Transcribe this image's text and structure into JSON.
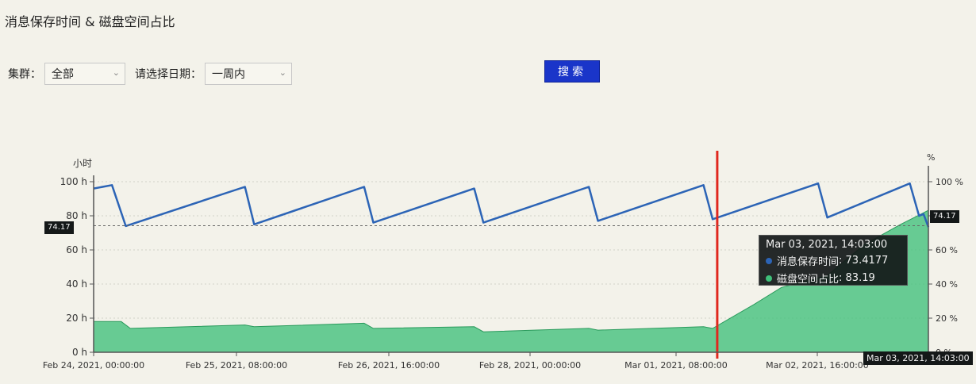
{
  "page": {
    "title": "消息保存时间 & 磁盘空间占比"
  },
  "filters": {
    "cluster_label": "集群：",
    "cluster_value": "全部",
    "date_label": "请选择日期：",
    "date_value": "一周内",
    "search_label": "搜索"
  },
  "colors": {
    "retention": "#2c64b6",
    "disk_fill": "#3fc07a",
    "disk_line": "#2a9a5c",
    "crosshair": "#e0281e",
    "search_button": "#1a35c9"
  },
  "chart_data": {
    "type": "line",
    "x_axis": {
      "ticks": [
        "Feb 24, 2021, 00:00:00",
        "Feb 25, 2021, 08:00:00",
        "Feb 26, 2021, 16:00:00",
        "Feb 28, 2021, 00:00:00",
        "Mar 01, 2021, 08:00:00",
        "Mar 02, 2021, 16:00:00"
      ],
      "end_label": "Mar 03, 2021, 14:03:00"
    },
    "y_left": {
      "unit": "小时",
      "range": [
        0,
        100
      ],
      "ticks": [
        "0 h",
        "20 h",
        "40 h",
        "60 h",
        "80 h",
        "100 h"
      ],
      "cursor_value": "74.17"
    },
    "y_right": {
      "unit": "%",
      "range": [
        0,
        100
      ],
      "ticks": [
        "0 %",
        "20 %",
        "40 %",
        "60 %",
        "80 %",
        "100 %"
      ],
      "cursor_value": "74.17"
    },
    "series": [
      {
        "name": "消息保存时间",
        "axis": "left",
        "points": [
          [
            "2021-02-24 00:00",
            96
          ],
          [
            "2021-02-24 04:00",
            98
          ],
          [
            "2021-02-24 07:00",
            74
          ],
          [
            "2021-02-25 09:00",
            97
          ],
          [
            "2021-02-25 11:00",
            75
          ],
          [
            "2021-02-26 11:00",
            97
          ],
          [
            "2021-02-26 13:00",
            76
          ],
          [
            "2021-02-27 11:00",
            96
          ],
          [
            "2021-02-27 13:00",
            76
          ],
          [
            "2021-02-28 12:00",
            97
          ],
          [
            "2021-02-28 14:00",
            77
          ],
          [
            "2021-03-01 13:00",
            98
          ],
          [
            "2021-03-01 15:00",
            78
          ],
          [
            "2021-03-02 14:00",
            99
          ],
          [
            "2021-03-02 16:00",
            79
          ],
          [
            "2021-03-03 10:00",
            99
          ],
          [
            "2021-03-03 12:00",
            80
          ],
          [
            "2021-03-03 13:00",
            81
          ],
          [
            "2021-03-03 14:03",
            73.4177
          ]
        ]
      },
      {
        "name": "磁盘空间占比",
        "axis": "right",
        "points": [
          [
            "2021-02-24 00:00",
            18
          ],
          [
            "2021-02-24 06:00",
            18
          ],
          [
            "2021-02-24 08:00",
            14
          ],
          [
            "2021-02-25 09:00",
            16
          ],
          [
            "2021-02-25 11:00",
            15
          ],
          [
            "2021-02-26 11:00",
            17
          ],
          [
            "2021-02-26 13:00",
            14
          ],
          [
            "2021-02-27 11:00",
            15
          ],
          [
            "2021-02-27 13:00",
            12
          ],
          [
            "2021-02-28 12:00",
            14
          ],
          [
            "2021-02-28 14:00",
            13
          ],
          [
            "2021-03-01 13:00",
            15
          ],
          [
            "2021-03-01 15:00",
            14
          ],
          [
            "2021-03-02 00:00",
            28
          ],
          [
            "2021-03-02 06:00",
            38
          ],
          [
            "2021-03-02 16:00",
            45
          ],
          [
            "2021-03-03 00:00",
            63
          ],
          [
            "2021-03-03 08:00",
            75
          ],
          [
            "2021-03-03 14:03",
            83.19
          ]
        ]
      }
    ],
    "cursor_time": "2021-03-01 16:00",
    "tooltip": {
      "time": "Mar 03, 2021, 14:03:00",
      "rows": [
        {
          "label": "消息保存时间",
          "value": "73.4177"
        },
        {
          "label": "磁盘空间占比",
          "value": "83.19"
        }
      ]
    }
  }
}
